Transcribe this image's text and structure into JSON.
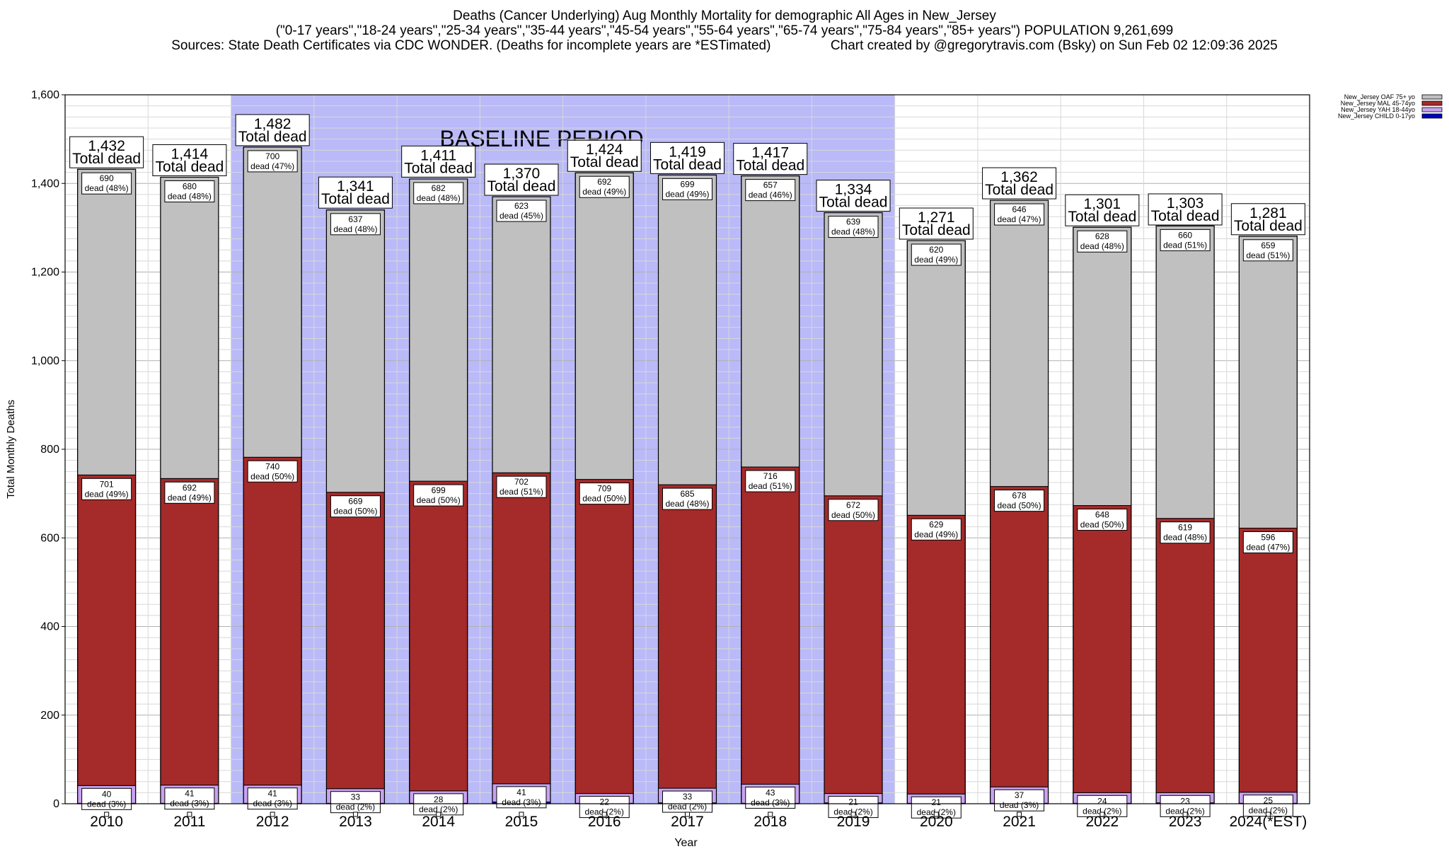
{
  "header": {
    "title": "Deaths (Cancer Underlying) Aug Monthly Mortality for demographic All Ages in New_Jersey",
    "subtitle": "(\"0-17 years\",\"18-24 years\",\"25-34 years\",\"35-44 years\",\"45-54 years\",\"55-64 years\",\"65-74 years\",\"75-84 years\",\"85+ years\") POPULATION 9,261,699",
    "sources": "Sources: State Death Certificates via CDC WONDER. (Deaths for incomplete years are *ESTimated)",
    "credit": "Chart created by @gregorytravis.com (Bsky) on Sun Feb 02 12:09:36 2025"
  },
  "chart_data": {
    "type": "bar",
    "stacked": true,
    "xlabel": "Year",
    "ylabel": "Total Monthly Deaths",
    "ylim": [
      0,
      1600
    ],
    "yticks": [
      0,
      200,
      400,
      600,
      800,
      1000,
      1200,
      1400,
      1600
    ],
    "ytick_labels": [
      "0",
      "200",
      "400",
      "600",
      "800",
      "1,000",
      "1,200",
      "1,400",
      "1,600"
    ],
    "grid": true,
    "legend_position": "top-right",
    "baseline": {
      "label": "BASELINE PERIOD",
      "from": "2012",
      "to": "2019",
      "color": "#babaf8"
    },
    "total_suffix": "Total dead",
    "segment_prefix": "dead",
    "categories": [
      "2010",
      "2011",
      "2012",
      "2013",
      "2014",
      "2015",
      "2016",
      "2017",
      "2018",
      "2019",
      "2020",
      "2021",
      "2022",
      "2023",
      "2024(*EST)"
    ],
    "totals": [
      1432,
      1414,
      1482,
      1341,
      1411,
      1370,
      1424,
      1419,
      1417,
      1334,
      1271,
      1362,
      1301,
      1303,
      1281
    ],
    "total_labels": [
      "1,432",
      "1,414",
      "1,482",
      "1,341",
      "1,411",
      "1,370",
      "1,424",
      "1,419",
      "1,417",
      "1,334",
      "1,271",
      "1,362",
      "1,301",
      "1,303",
      "1,281"
    ],
    "series": [
      {
        "name": "New_Jersey CHILD 0-17yo",
        "color": "#0000c0",
        "values": [
          1,
          1,
          1,
          1,
          1,
          4,
          1,
          2,
          1,
          2,
          1,
          1,
          1,
          2,
          1
        ],
        "pct": [
          null,
          null,
          null,
          null,
          null,
          null,
          null,
          null,
          null,
          null,
          null,
          null,
          null,
          null,
          null
        ]
      },
      {
        "name": "New_Jersey YAH 18-44yo",
        "color": "#c8a2f0",
        "values": [
          40,
          41,
          41,
          33,
          28,
          41,
          22,
          33,
          43,
          21,
          21,
          37,
          24,
          23,
          25
        ],
        "pct": [
          "3%",
          "3%",
          "3%",
          "2%",
          "2%",
          "3%",
          "2%",
          "2%",
          "3%",
          "2%",
          "2%",
          "3%",
          "2%",
          "2%",
          "2%"
        ]
      },
      {
        "name": "New_Jersey MAL 45-74yo",
        "color": "#a52a2a",
        "values": [
          701,
          692,
          740,
          669,
          699,
          702,
          709,
          685,
          716,
          672,
          629,
          678,
          648,
          619,
          596
        ],
        "pct": [
          "49%",
          "49%",
          "50%",
          "50%",
          "50%",
          "51%",
          "50%",
          "48%",
          "51%",
          "50%",
          "49%",
          "50%",
          "50%",
          "48%",
          "47%"
        ]
      },
      {
        "name": "New_Jersey OAF 75+ yo",
        "color": "#c0c0c0",
        "values": [
          690,
          680,
          700,
          637,
          682,
          623,
          692,
          699,
          657,
          639,
          620,
          646,
          628,
          660,
          659
        ],
        "pct": [
          "48%",
          "48%",
          "47%",
          "48%",
          "48%",
          "45%",
          "49%",
          "49%",
          "46%",
          "48%",
          "49%",
          "47%",
          "48%",
          "51%",
          "51%"
        ]
      }
    ]
  }
}
